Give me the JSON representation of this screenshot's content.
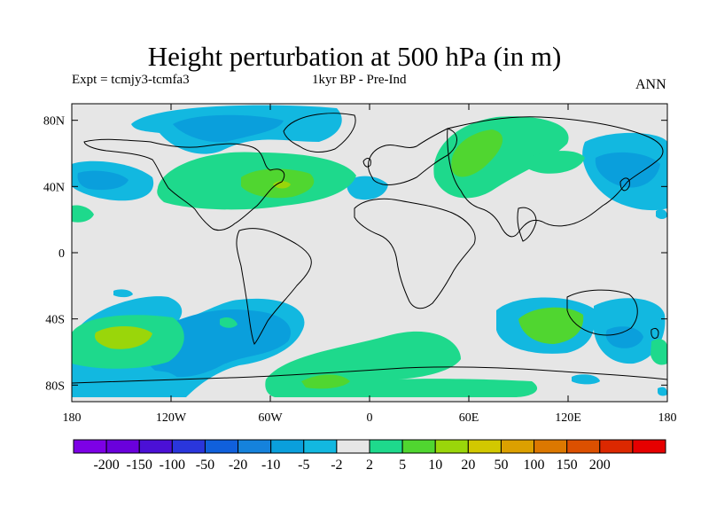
{
  "title": "Height perturbation at 500 hPa (in m)",
  "subtitle_left": "Expt = tcmjy3-tcmfa3",
  "subtitle_center": "1kyr BP - Pre-Ind",
  "subtitle_right": "ANN",
  "map": {
    "lon_range": [
      -180,
      180
    ],
    "lat_range": [
      -90,
      90
    ],
    "background_color": "#e6e6e6",
    "x_ticks": [
      {
        "lon": -180,
        "label": "180"
      },
      {
        "lon": -120,
        "label": "120W"
      },
      {
        "lon": -60,
        "label": "60W"
      },
      {
        "lon": 0,
        "label": "0"
      },
      {
        "lon": 60,
        "label": "60E"
      },
      {
        "lon": 120,
        "label": "120E"
      },
      {
        "lon": 180,
        "label": "180"
      }
    ],
    "y_ticks": [
      {
        "lat": 80,
        "label": "80N"
      },
      {
        "lat": 40,
        "label": "40N"
      },
      {
        "lat": 0,
        "label": "0"
      },
      {
        "lat": -40,
        "label": "40S"
      },
      {
        "lat": -80,
        "label": "80S"
      }
    ]
  },
  "colorbar": {
    "colors": [
      "#7d00e6",
      "#6a00dc",
      "#4b10d6",
      "#2a36dc",
      "#1060dc",
      "#1582dc",
      "#0a9fdc",
      "#12b8e0",
      "#e6e6e6",
      "#1ed98c",
      "#50d630",
      "#9ad60a",
      "#d2c800",
      "#dca000",
      "#dc7800",
      "#dc5000",
      "#dc2800",
      "#e60000"
    ],
    "labels": [
      "-200",
      "-150",
      "-100",
      "-50",
      "-20",
      "-10",
      "-5",
      "-2",
      "2",
      "5",
      "10",
      "20",
      "50",
      "100",
      "150",
      "200"
    ]
  }
}
